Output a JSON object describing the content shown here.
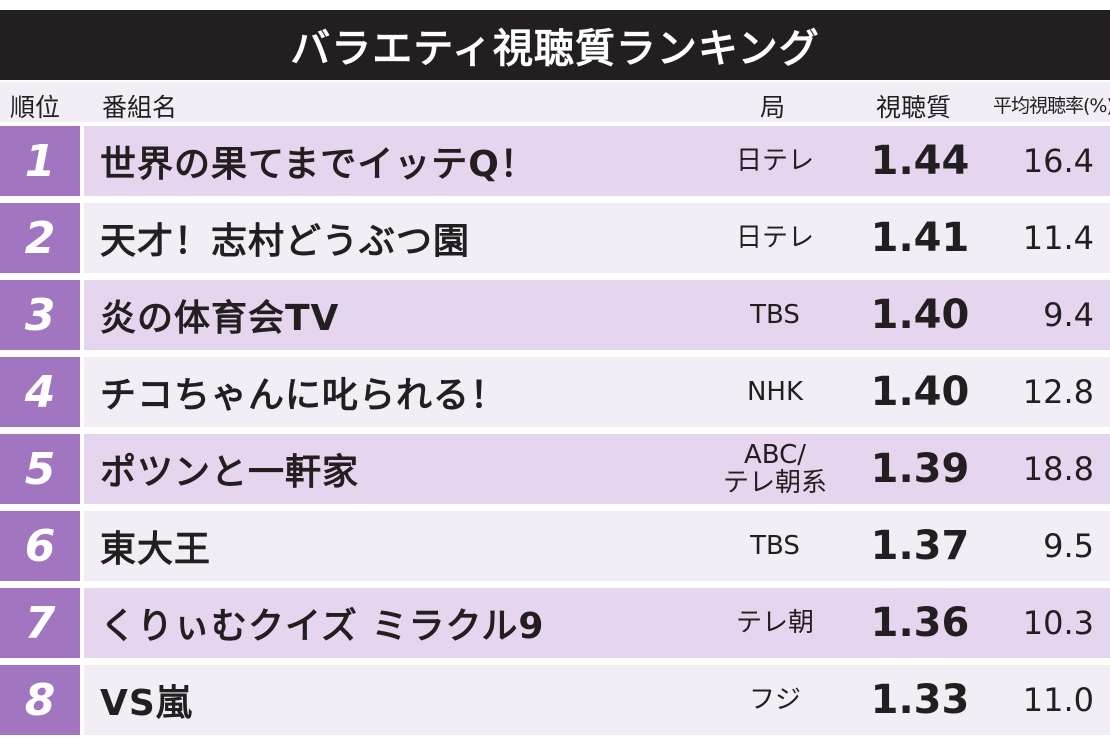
{
  "title": "バラエティ視聴質ランキング",
  "headers": {
    "rank": "順位",
    "name": "番組名",
    "station": "局",
    "quality": "視聴質",
    "avg": "平均視聴率(%)"
  },
  "rows": [
    {
      "rank": "1",
      "name": "世界の果てまでイッテQ！",
      "station": "日テレ",
      "quality": "1.44",
      "avg": "16.4"
    },
    {
      "rank": "2",
      "name": "天才！志村どうぶつ園",
      "station": "日テレ",
      "quality": "1.41",
      "avg": "11.4"
    },
    {
      "rank": "3",
      "name": "炎の体育会TV",
      "station": "TBS",
      "quality": "1.40",
      "avg": "9.4"
    },
    {
      "rank": "4",
      "name": "チコちゃんに叱られる！",
      "station": "NHK",
      "quality": "1.40",
      "avg": "12.8"
    },
    {
      "rank": "5",
      "name": "ポツンと一軒家",
      "station": "ABC/\nテレ朝系",
      "quality": "1.39",
      "avg": "18.8"
    },
    {
      "rank": "6",
      "name": "東大王",
      "station": "TBS",
      "quality": "1.37",
      "avg": "9.5"
    },
    {
      "rank": "7",
      "name": "くりぃむクイズ ミラクル9",
      "station": "テレ朝",
      "quality": "1.36",
      "avg": "10.3"
    },
    {
      "rank": "8",
      "name": "VS嵐",
      "station": "フジ",
      "quality": "1.33",
      "avg": "11.0"
    }
  ],
  "colors": {
    "title_bg": "#231f20",
    "rank_bg": "#a275c1",
    "row_odd": "#e6d5ee",
    "row_even": "#f3eef6"
  }
}
